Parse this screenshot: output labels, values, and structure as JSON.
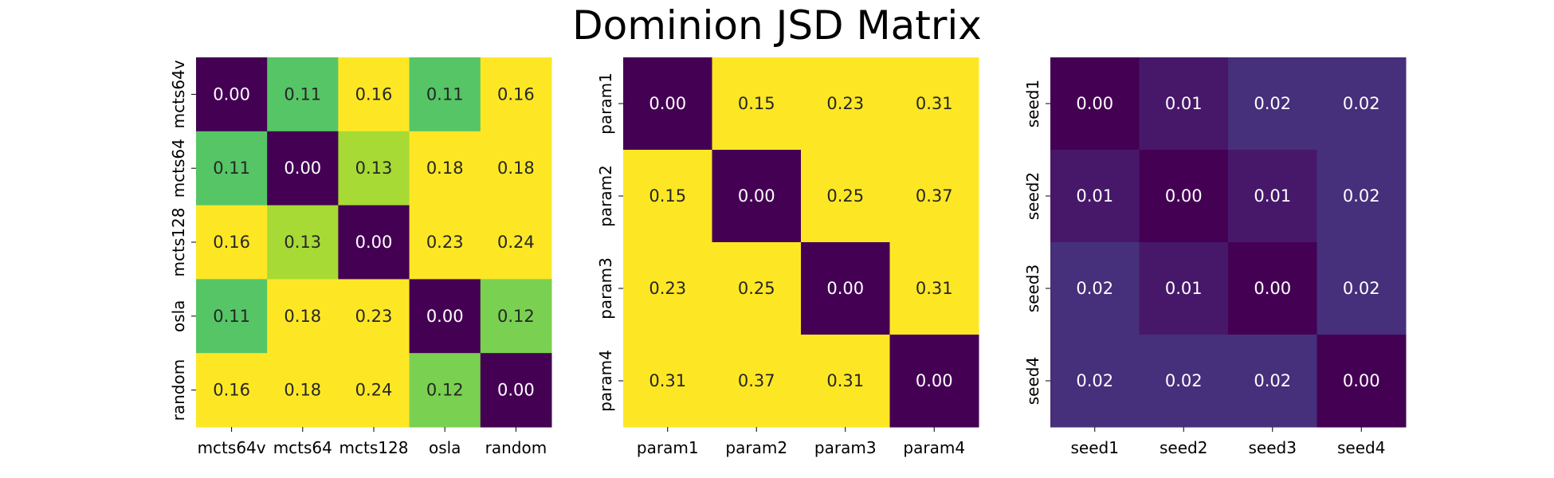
{
  "title": "Dominion JSD Matrix",
  "colors": {
    "high": "#fde725",
    "low": "#440154"
  },
  "chart_data": [
    {
      "type": "heatmap",
      "title": "",
      "x_categories": [
        "mcts64v",
        "mcts64",
        "mcts128",
        "osla",
        "random"
      ],
      "y_categories": [
        "mcts64v",
        "mcts64",
        "mcts128",
        "osla",
        "random"
      ],
      "values": [
        [
          0.0,
          0.11,
          0.16,
          0.11,
          0.16
        ],
        [
          0.11,
          0.0,
          0.13,
          0.18,
          0.18
        ],
        [
          0.16,
          0.13,
          0.0,
          0.23,
          0.24
        ],
        [
          0.11,
          0.18,
          0.23,
          0.0,
          0.12
        ],
        [
          0.16,
          0.18,
          0.24,
          0.12,
          0.0
        ]
      ],
      "vmin": 0.0,
      "vmax": 0.15,
      "colormap": "viridis",
      "colorbar": false
    },
    {
      "type": "heatmap",
      "title": "",
      "x_categories": [
        "param1",
        "param2",
        "param3",
        "param4"
      ],
      "y_categories": [
        "param1",
        "param2",
        "param3",
        "param4"
      ],
      "values": [
        [
          0.0,
          0.15,
          0.23,
          0.31
        ],
        [
          0.15,
          0.0,
          0.25,
          0.37
        ],
        [
          0.23,
          0.25,
          0.0,
          0.31
        ],
        [
          0.31,
          0.37,
          0.31,
          0.0
        ]
      ],
      "vmin": 0.0,
      "vmax": 0.15,
      "colormap": "viridis",
      "colorbar": false
    },
    {
      "type": "heatmap",
      "title": "",
      "x_categories": [
        "seed1",
        "seed2",
        "seed3",
        "seed4"
      ],
      "y_categories": [
        "seed1",
        "seed2",
        "seed3",
        "seed4"
      ],
      "values": [
        [
          0.0,
          0.01,
          0.02,
          0.02
        ],
        [
          0.01,
          0.0,
          0.01,
          0.02
        ],
        [
          0.02,
          0.01,
          0.0,
          0.02
        ],
        [
          0.02,
          0.02,
          0.02,
          0.0
        ]
      ],
      "vmin": 0.0,
      "vmax": 0.15,
      "colormap": "viridis",
      "colorbar": false
    }
  ]
}
